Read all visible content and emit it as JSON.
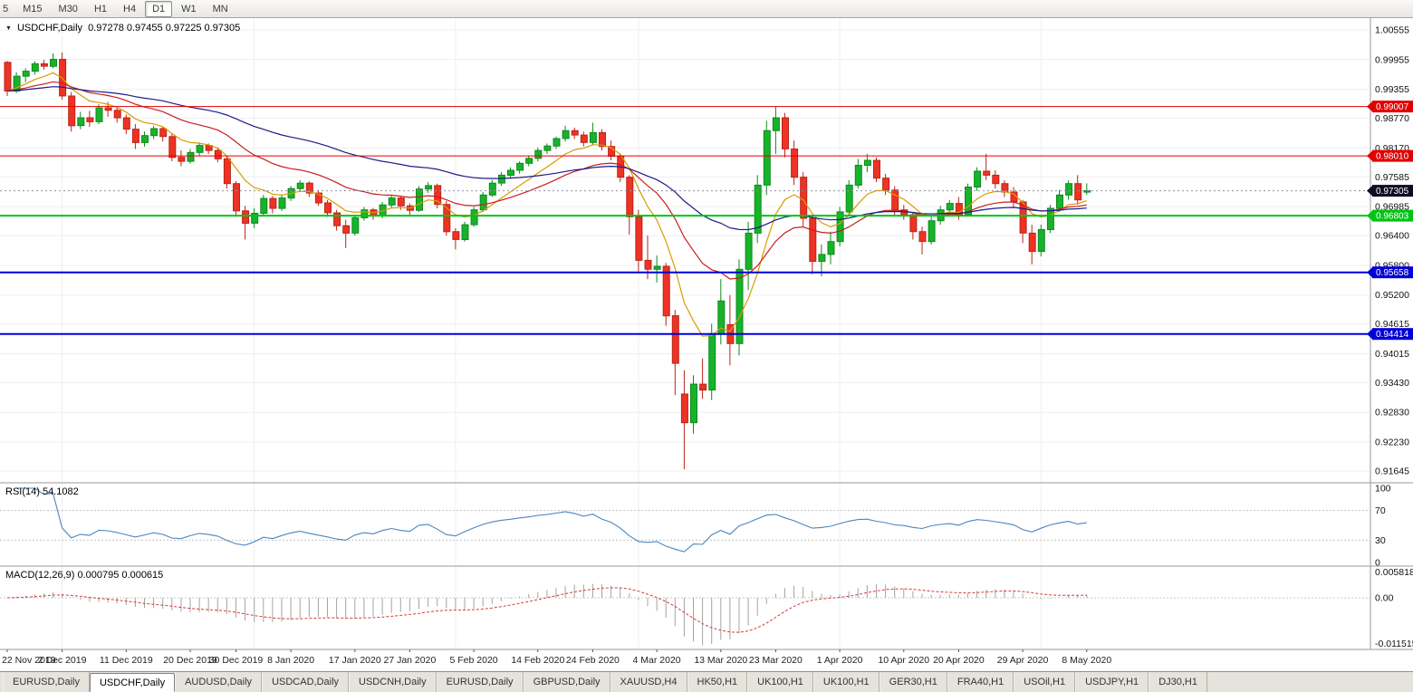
{
  "toolbar": {
    "periods": [
      "5",
      "M15",
      "M30",
      "H1",
      "H4",
      "D1",
      "W1",
      "MN"
    ],
    "active": "D1"
  },
  "chart_header": {
    "dropdown_icon": "▼",
    "symbol": "USDCHF,Daily",
    "ohlc": "0.97278 0.97455 0.97225 0.97305"
  },
  "colors": {
    "candle_up": "#17b32a",
    "candle_up_border": "#0d8a1e",
    "candle_down": "#ee3224",
    "candle_down_border": "#b9251a",
    "grid": "#efefef",
    "panel_border": "#9a9a9a",
    "level_red": "#e10000",
    "level_green": "#00c414",
    "level_blue": "#0000d8",
    "current_badge": "#0d0d21"
  },
  "price_axis": {
    "labels": [
      "1.00555",
      "0.99955",
      "0.99355",
      "0.98770",
      "0.98170",
      "0.97585",
      "0.96985",
      "0.96400",
      "0.95800",
      "0.95200",
      "0.94615",
      "0.94015",
      "0.93430",
      "0.92830",
      "0.92230",
      "0.91645"
    ]
  },
  "levels": [
    {
      "value": 0.99007,
      "label": "0.99007",
      "color": "#e10000",
      "width": 1
    },
    {
      "value": 0.9801,
      "label": "0.98010",
      "color": "#e10000",
      "width": 1
    },
    {
      "value": 0.96803,
      "label": "0.96803",
      "color": "#00c414",
      "width": 2
    },
    {
      "value": 0.95658,
      "label": "0.95658",
      "color": "#0000d8",
      "width": 2
    },
    {
      "value": 0.94414,
      "label": "0.94414",
      "color": "#0000d8",
      "width": 2
    }
  ],
  "current_price": {
    "value": 0.97305,
    "label": "0.97305"
  },
  "chart_data": {
    "type": "candlestick",
    "title": "USDCHF Daily",
    "symbol": "USDCHF",
    "timeframe": "Daily",
    "price_range": {
      "top": 1.00555,
      "bottom": 0.91645
    },
    "month_start_indices": [
      6,
      27,
      49,
      69,
      91,
      113
    ],
    "x_labels": [
      {
        "label": "22 Nov 2019",
        "i": 0
      },
      {
        "label": "2 Dec 2019",
        "i": 6
      },
      {
        "label": "11 Dec 2019",
        "i": 13
      },
      {
        "label": "20 Dec 2019",
        "i": 20
      },
      {
        "label": "30 Dec 2019",
        "i": 25
      },
      {
        "label": "8 Jan 2020",
        "i": 31
      },
      {
        "label": "17 Jan 2020",
        "i": 38
      },
      {
        "label": "27 Jan 2020",
        "i": 44
      },
      {
        "label": "5 Feb 2020",
        "i": 51
      },
      {
        "label": "14 Feb 2020",
        "i": 58
      },
      {
        "label": "24 Feb 2020",
        "i": 64
      },
      {
        "label": "4 Mar 2020",
        "i": 71
      },
      {
        "label": "13 Mar 2020",
        "i": 78
      },
      {
        "label": "23 Mar 2020",
        "i": 84
      },
      {
        "label": "1 Apr 2020",
        "i": 91
      },
      {
        "label": "10 Apr 2020",
        "i": 98
      },
      {
        "label": "20 Apr 2020",
        "i": 104
      },
      {
        "label": "29 Apr 2020",
        "i": 111
      },
      {
        "label": "8 May 2020",
        "i": 118
      }
    ],
    "moving_averages": [
      {
        "period": 8,
        "color": "#d99c00"
      },
      {
        "period": 21,
        "color": "#c81e1e"
      },
      {
        "period": 50,
        "color": "#1b1b8a"
      }
    ],
    "candles": [
      [
        0.999,
        0.9993,
        0.9922,
        0.9932
      ],
      [
        0.9932,
        0.997,
        0.9928,
        0.9962
      ],
      [
        0.9962,
        0.9978,
        0.995,
        0.9972
      ],
      [
        0.9972,
        0.9992,
        0.9965,
        0.9987
      ],
      [
        0.9987,
        0.9995,
        0.9975,
        0.9982
      ],
      [
        0.9982,
        1.0008,
        0.9978,
        0.9996
      ],
      [
        0.9996,
        1.001,
        0.9915,
        0.9922
      ],
      [
        0.9922,
        0.993,
        0.985,
        0.9862
      ],
      [
        0.9862,
        0.989,
        0.9855,
        0.9878
      ],
      [
        0.9878,
        0.9892,
        0.986,
        0.987
      ],
      [
        0.987,
        0.9905,
        0.9865,
        0.9898
      ],
      [
        0.9898,
        0.991,
        0.988,
        0.9893
      ],
      [
        0.9893,
        0.99,
        0.9868,
        0.9878
      ],
      [
        0.9878,
        0.9885,
        0.9845,
        0.9855
      ],
      [
        0.9855,
        0.9865,
        0.9815,
        0.9828
      ],
      [
        0.9828,
        0.985,
        0.982,
        0.9842
      ],
      [
        0.9842,
        0.9862,
        0.9835,
        0.9856
      ],
      [
        0.9856,
        0.986,
        0.983,
        0.984
      ],
      [
        0.984,
        0.9845,
        0.979,
        0.9798
      ],
      [
        0.9798,
        0.9812,
        0.978,
        0.979
      ],
      [
        0.979,
        0.9815,
        0.9785,
        0.9808
      ],
      [
        0.9808,
        0.9828,
        0.98,
        0.9822
      ],
      [
        0.9822,
        0.9826,
        0.9805,
        0.9812
      ],
      [
        0.9812,
        0.9818,
        0.9788,
        0.9795
      ],
      [
        0.9795,
        0.98,
        0.9735,
        0.9745
      ],
      [
        0.9745,
        0.975,
        0.9678,
        0.969
      ],
      [
        0.969,
        0.97,
        0.9632,
        0.9665
      ],
      [
        0.9665,
        0.9695,
        0.9655,
        0.9685
      ],
      [
        0.9685,
        0.9722,
        0.968,
        0.9715
      ],
      [
        0.9715,
        0.972,
        0.9685,
        0.9695
      ],
      [
        0.9695,
        0.9722,
        0.969,
        0.9716
      ],
      [
        0.9716,
        0.974,
        0.971,
        0.9735
      ],
      [
        0.9735,
        0.9752,
        0.9728,
        0.9746
      ],
      [
        0.9746,
        0.975,
        0.9718,
        0.9726
      ],
      [
        0.9726,
        0.9732,
        0.97,
        0.9706
      ],
      [
        0.9706,
        0.9712,
        0.9678,
        0.9686
      ],
      [
        0.9686,
        0.9692,
        0.965,
        0.966
      ],
      [
        0.966,
        0.9672,
        0.9615,
        0.9645
      ],
      [
        0.9645,
        0.9682,
        0.964,
        0.9676
      ],
      [
        0.9676,
        0.9698,
        0.967,
        0.9692
      ],
      [
        0.9692,
        0.9696,
        0.9672,
        0.968
      ],
      [
        0.968,
        0.9708,
        0.9675,
        0.9702
      ],
      [
        0.9702,
        0.9722,
        0.9695,
        0.9716
      ],
      [
        0.9716,
        0.972,
        0.9692,
        0.97
      ],
      [
        0.97,
        0.9705,
        0.9682,
        0.9691
      ],
      [
        0.9691,
        0.974,
        0.9688,
        0.9734
      ],
      [
        0.9734,
        0.9748,
        0.9726,
        0.9741
      ],
      [
        0.9741,
        0.9745,
        0.9695,
        0.9703
      ],
      [
        0.9703,
        0.971,
        0.964,
        0.9648
      ],
      [
        0.9648,
        0.9655,
        0.9612,
        0.9632
      ],
      [
        0.9632,
        0.9668,
        0.9628,
        0.9662
      ],
      [
        0.9662,
        0.9698,
        0.9658,
        0.9692
      ],
      [
        0.9692,
        0.9728,
        0.9688,
        0.9722
      ],
      [
        0.9722,
        0.9752,
        0.9718,
        0.9746
      ],
      [
        0.9746,
        0.9768,
        0.974,
        0.9762
      ],
      [
        0.9762,
        0.9778,
        0.9755,
        0.9772
      ],
      [
        0.9772,
        0.979,
        0.9765,
        0.9786
      ],
      [
        0.9786,
        0.9802,
        0.978,
        0.9796
      ],
      [
        0.9796,
        0.9818,
        0.979,
        0.9812
      ],
      [
        0.9812,
        0.9826,
        0.9805,
        0.9821
      ],
      [
        0.9821,
        0.984,
        0.9815,
        0.9836
      ],
      [
        0.9836,
        0.9862,
        0.983,
        0.9852
      ],
      [
        0.9852,
        0.9858,
        0.9835,
        0.9843
      ],
      [
        0.9843,
        0.985,
        0.982,
        0.9828
      ],
      [
        0.9828,
        0.9868,
        0.9822,
        0.9848
      ],
      [
        0.9848,
        0.9855,
        0.9812,
        0.982
      ],
      [
        0.982,
        0.9832,
        0.9792,
        0.98
      ],
      [
        0.98,
        0.9806,
        0.9748,
        0.9758
      ],
      [
        0.9758,
        0.9762,
        0.9642,
        0.9678
      ],
      [
        0.9678,
        0.9692,
        0.9568,
        0.959
      ],
      [
        0.959,
        0.964,
        0.9552,
        0.9572
      ],
      [
        0.9572,
        0.96,
        0.9545,
        0.9578
      ],
      [
        0.9578,
        0.9585,
        0.9458,
        0.9478
      ],
      [
        0.9478,
        0.949,
        0.9318,
        0.9382
      ],
      [
        0.932,
        0.9368,
        0.9168,
        0.9262
      ],
      [
        0.9262,
        0.9358,
        0.924,
        0.934
      ],
      [
        0.934,
        0.9392,
        0.931,
        0.9328
      ],
      [
        0.9328,
        0.9462,
        0.9308,
        0.9442
      ],
      [
        0.9442,
        0.9552,
        0.942,
        0.9508
      ],
      [
        0.946,
        0.952,
        0.9378,
        0.9422
      ],
      [
        0.9422,
        0.9592,
        0.9398,
        0.9572
      ],
      [
        0.9572,
        0.9668,
        0.953,
        0.9645
      ],
      [
        0.9645,
        0.9762,
        0.9625,
        0.9742
      ],
      [
        0.9742,
        0.9872,
        0.9722,
        0.9852
      ],
      [
        0.9852,
        0.9901,
        0.9805,
        0.9878
      ],
      [
        0.9878,
        0.9888,
        0.9798,
        0.9815
      ],
      [
        0.9815,
        0.9832,
        0.9742,
        0.9758
      ],
      [
        0.9758,
        0.9768,
        0.9658,
        0.9675
      ],
      [
        0.9675,
        0.9682,
        0.9562,
        0.9588
      ],
      [
        0.9588,
        0.9622,
        0.9558,
        0.9602
      ],
      [
        0.9602,
        0.9648,
        0.9582,
        0.9628
      ],
      [
        0.9628,
        0.9698,
        0.9618,
        0.9688
      ],
      [
        0.9688,
        0.9752,
        0.9682,
        0.9742
      ],
      [
        0.9742,
        0.9795,
        0.9735,
        0.9782
      ],
      [
        0.9782,
        0.9805,
        0.9768,
        0.9792
      ],
      [
        0.9792,
        0.9798,
        0.9748,
        0.9756
      ],
      [
        0.9756,
        0.9765,
        0.9722,
        0.9732
      ],
      [
        0.9732,
        0.974,
        0.9682,
        0.9692
      ],
      [
        0.9692,
        0.9702,
        0.9672,
        0.9682
      ],
      [
        0.9682,
        0.9688,
        0.9632,
        0.9648
      ],
      [
        0.9648,
        0.9658,
        0.9602,
        0.9628
      ],
      [
        0.9628,
        0.9678,
        0.9622,
        0.967
      ],
      [
        0.967,
        0.97,
        0.9662,
        0.9692
      ],
      [
        0.9692,
        0.9712,
        0.968,
        0.9705
      ],
      [
        0.9705,
        0.9718,
        0.9672,
        0.9682
      ],
      [
        0.9682,
        0.9745,
        0.9678,
        0.9738
      ],
      [
        0.9738,
        0.9778,
        0.973,
        0.977
      ],
      [
        0.977,
        0.9805,
        0.9752,
        0.9762
      ],
      [
        0.9762,
        0.9772,
        0.9735,
        0.9745
      ],
      [
        0.9745,
        0.9752,
        0.9718,
        0.9728
      ],
      [
        0.9728,
        0.9738,
        0.9698,
        0.9708
      ],
      [
        0.9708,
        0.9712,
        0.9625,
        0.9645
      ],
      [
        0.9645,
        0.9662,
        0.9582,
        0.9608
      ],
      [
        0.9608,
        0.9662,
        0.9598,
        0.9652
      ],
      [
        0.9652,
        0.9702,
        0.9645,
        0.9695
      ],
      [
        0.9695,
        0.9732,
        0.9688,
        0.9722
      ],
      [
        0.9722,
        0.9752,
        0.9712,
        0.9745
      ],
      [
        0.9745,
        0.9762,
        0.9702,
        0.9712
      ],
      [
        0.97278,
        0.97455,
        0.97225,
        0.97305
      ]
    ]
  },
  "rsi": {
    "label": "RSI(14) 54.1082",
    "period": 14,
    "current": "54.1082",
    "axis_labels": [
      "100",
      "70",
      "30",
      "0"
    ],
    "guide_levels": [
      70,
      30
    ],
    "color": "#4a86c0"
  },
  "macd": {
    "label": "MACD(12,26,9) 0.000795 0.000615",
    "fast": 12,
    "slow": 26,
    "signal": 9,
    "macd_value": "0.000795",
    "signal_value": "0.000615",
    "axis_top": "0.0058185",
    "axis_zero": "0.00",
    "axis_bottom": "-0.0115155",
    "histogram_color": "#a4a4a4",
    "signal_color": "#d43a3a"
  },
  "tabs": {
    "items": [
      "EURUSD,Daily",
      "USDCHF,Daily",
      "AUDUSD,Daily",
      "USDCAD,Daily",
      "USDCNH,Daily",
      "EURUSD,Daily",
      "GBPUSD,Daily",
      "XAUUSD,H4",
      "HK50,H1",
      "UK100,H1",
      "UK100,H1",
      "GER30,H1",
      "FRA40,H1",
      "USOil,H1",
      "USDJPY,H1",
      "DJ30,H1"
    ],
    "active_index": 1
  }
}
